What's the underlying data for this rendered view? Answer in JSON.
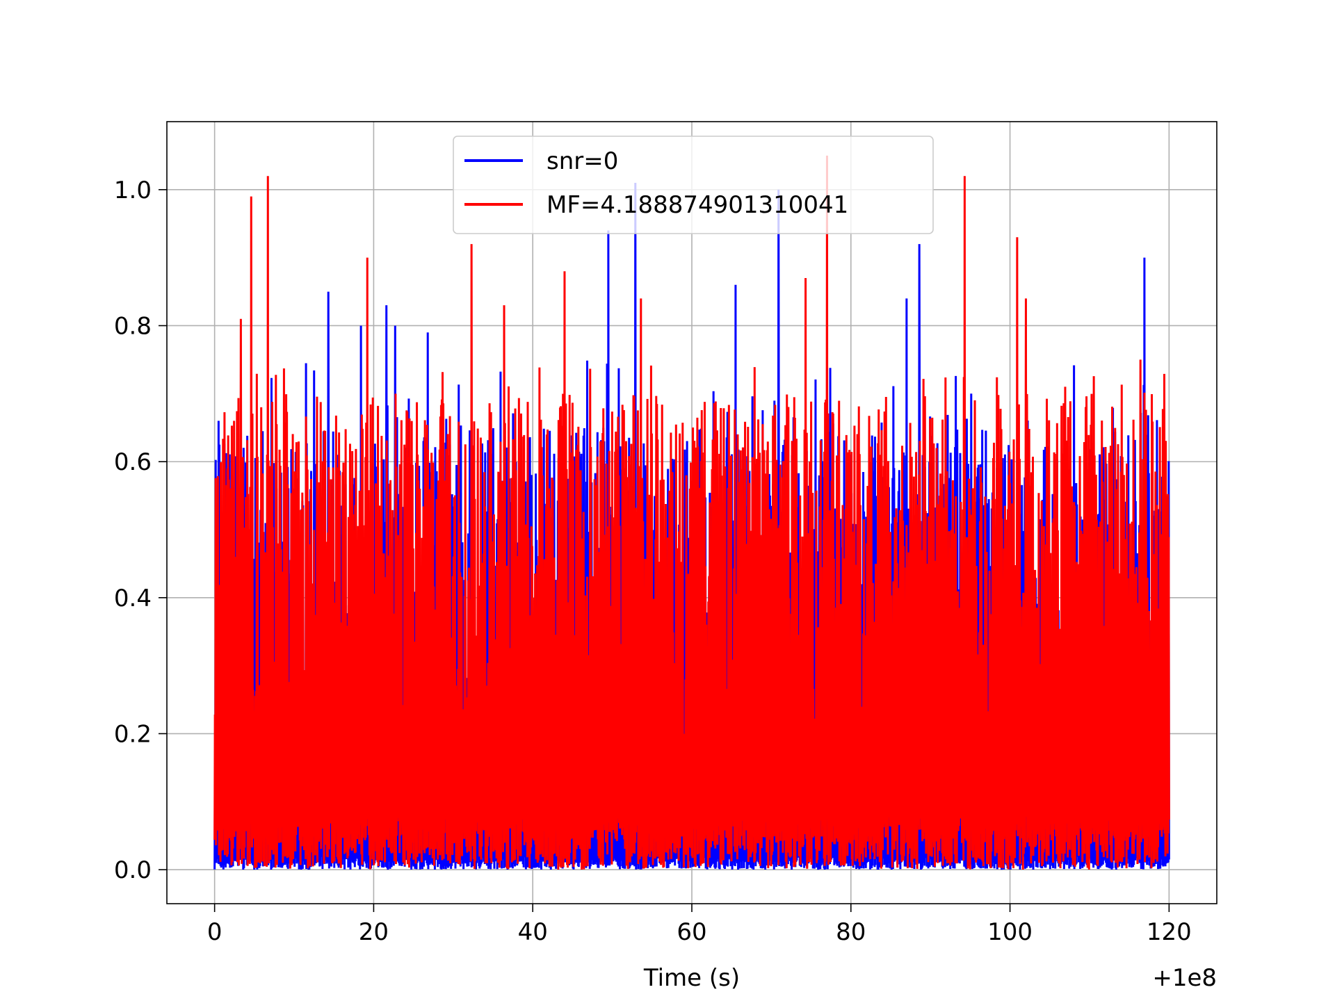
{
  "chart_data": {
    "type": "line",
    "title": "",
    "xlabel": "Time (s)",
    "ylabel": "",
    "x_offset_label": "+1e8",
    "xlim": [
      -6,
      126
    ],
    "ylim": [
      -0.05,
      1.1
    ],
    "x_ticks": [
      0,
      20,
      40,
      60,
      80,
      100,
      120
    ],
    "x_tick_labels": [
      "0",
      "20",
      "40",
      "60",
      "80",
      "100",
      "120"
    ],
    "y_ticks": [
      0.0,
      0.2,
      0.4,
      0.6,
      0.8,
      1.0
    ],
    "y_tick_labels": [
      "0.0",
      "0.2",
      "0.4",
      "0.6",
      "0.8",
      "1.0"
    ],
    "grid": true,
    "legend_position": "top-center",
    "series": [
      {
        "name": "snr=0",
        "color": "#0000ff",
        "x_range": [
          0,
          120
        ],
        "baseline": 0.01,
        "typical_peak": [
          0.35,
          0.65
        ],
        "peaks": [
          {
            "x": 0.5,
            "y": 0.66
          },
          {
            "x": 14.3,
            "y": 0.85
          },
          {
            "x": 18.4,
            "y": 0.8
          },
          {
            "x": 21.6,
            "y": 0.83
          },
          {
            "x": 22.7,
            "y": 0.8
          },
          {
            "x": 26.8,
            "y": 0.79
          },
          {
            "x": 49.5,
            "y": 0.94
          },
          {
            "x": 52.9,
            "y": 1.01
          },
          {
            "x": 65.5,
            "y": 0.86
          },
          {
            "x": 70.9,
            "y": 1.0
          },
          {
            "x": 87.0,
            "y": 0.84
          },
          {
            "x": 88.6,
            "y": 0.92
          },
          {
            "x": 116.9,
            "y": 0.9
          }
        ]
      },
      {
        "name": "MF=4.188874901310041",
        "color": "#ff0000",
        "x_range": [
          0,
          120
        ],
        "baseline": 0.04,
        "typical_peak": [
          0.4,
          0.7
        ],
        "peaks": [
          {
            "x": 3.3,
            "y": 0.81
          },
          {
            "x": 4.6,
            "y": 0.99
          },
          {
            "x": 6.7,
            "y": 1.02
          },
          {
            "x": 19.2,
            "y": 0.9
          },
          {
            "x": 32.3,
            "y": 0.92
          },
          {
            "x": 36.4,
            "y": 0.83
          },
          {
            "x": 44.0,
            "y": 0.88
          },
          {
            "x": 53.6,
            "y": 0.84
          },
          {
            "x": 74.3,
            "y": 0.87
          },
          {
            "x": 77.0,
            "y": 1.05
          },
          {
            "x": 94.3,
            "y": 1.02
          },
          {
            "x": 100.9,
            "y": 0.93
          },
          {
            "x": 102.0,
            "y": 0.84
          },
          {
            "x": 116.4,
            "y": 0.75
          }
        ]
      }
    ]
  }
}
